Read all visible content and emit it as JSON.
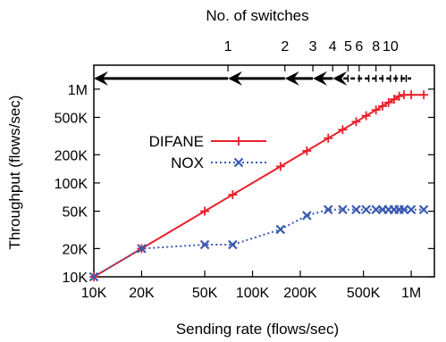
{
  "chart_data": {
    "type": "line",
    "title": "",
    "xlabel": "Sending rate (flows/sec)",
    "ylabel": "Throughput (flows/sec)",
    "x_scale": "log",
    "y_scale": "log",
    "xlim": [
      10000,
      1400000
    ],
    "ylim": [
      10000,
      1800000
    ],
    "x_ticks": [
      {
        "value": 10000,
        "label": "10K"
      },
      {
        "value": 20000,
        "label": "20K"
      },
      {
        "value": 50000,
        "label": "50K"
      },
      {
        "value": 100000,
        "label": "100K"
      },
      {
        "value": 200000,
        "label": "200K"
      },
      {
        "value": 500000,
        "label": "500K"
      },
      {
        "value": 1000000,
        "label": "1M"
      }
    ],
    "y_ticks": [
      {
        "value": 10000,
        "label": "10K"
      },
      {
        "value": 20000,
        "label": "20K"
      },
      {
        "value": 50000,
        "label": "50K"
      },
      {
        "value": 100000,
        "label": "100K"
      },
      {
        "value": 200000,
        "label": "200K"
      },
      {
        "value": 500000,
        "label": "500K"
      },
      {
        "value": 1000000,
        "label": "1M"
      }
    ],
    "top_axis": {
      "label": "No. of switches",
      "ticks": [
        {
          "value": 70000,
          "label": "1"
        },
        {
          "value": 160000,
          "label": "2"
        },
        {
          "value": 240000,
          "label": "3"
        },
        {
          "value": 320000,
          "label": "4"
        },
        {
          "value": 400000,
          "label": "5"
        },
        {
          "value": 470000,
          "label": "6"
        },
        {
          "value": 600000,
          "label": "8"
        },
        {
          "value": 740000,
          "label": "10"
        }
      ]
    },
    "legend_position": "middle-left",
    "series": [
      {
        "name": "DIFANE",
        "color": "#e8202a",
        "marker": "plus",
        "dash": "solid",
        "x": [
          10000,
          20000,
          50000,
          75000,
          150000,
          220000,
          300000,
          370000,
          450000,
          520000,
          600000,
          660000,
          720000,
          780000,
          840000,
          900000,
          1000000,
          1200000
        ],
        "y": [
          10000,
          20000,
          50000,
          75000,
          150000,
          220000,
          300000,
          370000,
          450000,
          520000,
          600000,
          660000,
          720000,
          780000,
          840000,
          870000,
          870000,
          870000
        ]
      },
      {
        "name": "NOX",
        "color": "#3a5ab0",
        "marker": "cross",
        "dash": "dotted",
        "x": [
          10000,
          20000,
          50000,
          75000,
          150000,
          220000,
          300000,
          370000,
          450000,
          520000,
          600000,
          660000,
          720000,
          780000,
          840000,
          900000,
          1000000,
          1200000
        ],
        "y": [
          10000,
          20000,
          22000,
          22000,
          32000,
          45000,
          52000,
          52000,
          52000,
          52000,
          52000,
          52000,
          52000,
          52000,
          52000,
          52000,
          52000,
          52000
        ]
      }
    ],
    "switch_arrows": {
      "y": 1300000,
      "solid_heads": [
        10000,
        70000,
        160000,
        240000,
        320000
      ],
      "dashed_from": 320000,
      "dashed_to": 1000000,
      "dashed_ticks": [
        400000,
        470000,
        540000,
        600000,
        660000,
        740000,
        800000,
        870000,
        930000
      ]
    }
  }
}
